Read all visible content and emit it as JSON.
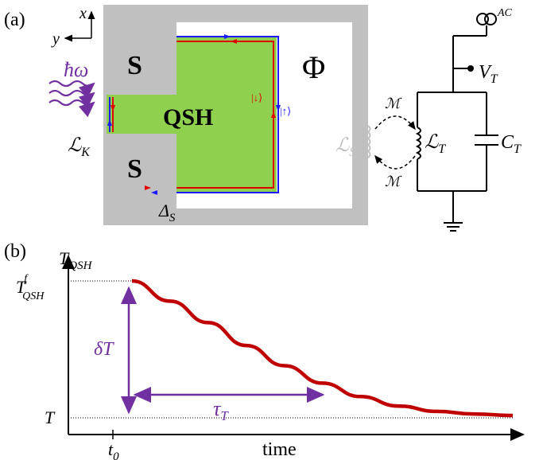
{
  "panel_a": {
    "label": "(a)",
    "axis_x": "x",
    "axis_y": "y",
    "s_top": "S",
    "s_bottom": "S",
    "qsh": "QSH",
    "flux": "Φ",
    "photon": "ħω",
    "kinetic_ind": "ℒ",
    "kinetic_ind_sub": "K",
    "delta": "Δ",
    "delta_sub": "S",
    "spin_down": "|↓⟩",
    "spin_up": "|↑⟩",
    "squid_ind": "ℒ",
    "squid_ind_sub": "S",
    "mutual_top": "ℳ",
    "mutual_bottom": "ℳ",
    "tank_ind": "ℒ",
    "tank_ind_sub": "T",
    "tank_cap": "C",
    "tank_cap_sub": "T",
    "voltage": "V",
    "voltage_sub": "T",
    "source": "AC",
    "colors": {
      "superconductor": "#c0c0c0",
      "qsh": "#8fd14f",
      "spin_down": "#e00000",
      "spin_up": "#1a1aff",
      "photon": "#7030a0",
      "inductor_ghost": "#bfbfbf"
    }
  },
  "panel_b": {
    "label": "(b)",
    "y_axis_label": "T",
    "y_axis_label_sub": "QSH",
    "t_final": "T",
    "t_final_sup": "f",
    "t_final_sub": "QSH",
    "t_base": "T",
    "delta_t": "δT",
    "tau": "τ",
    "tau_sub": "T",
    "t0": "t",
    "t0_sub": "0",
    "x_axis_label": "time",
    "colors": {
      "curve": "#c00000",
      "annotation": "#7030a0"
    }
  },
  "chart_data": {
    "type": "line",
    "title": "",
    "xlabel": "time",
    "ylabel": "T_QSH",
    "description_of_curve": "exponential relaxation from T_QSH^f at t0 down to T",
    "x": [
      0,
      0.5,
      1,
      1.5,
      2,
      2.5,
      3,
      3.5,
      4,
      4.5,
      5
    ],
    "y": [
      1.0,
      0.85,
      0.69,
      0.52,
      0.37,
      0.24,
      0.14,
      0.07,
      0.03,
      0.01,
      0.0
    ],
    "y_labels": [
      "T",
      "T_QSH^f"
    ]
  }
}
